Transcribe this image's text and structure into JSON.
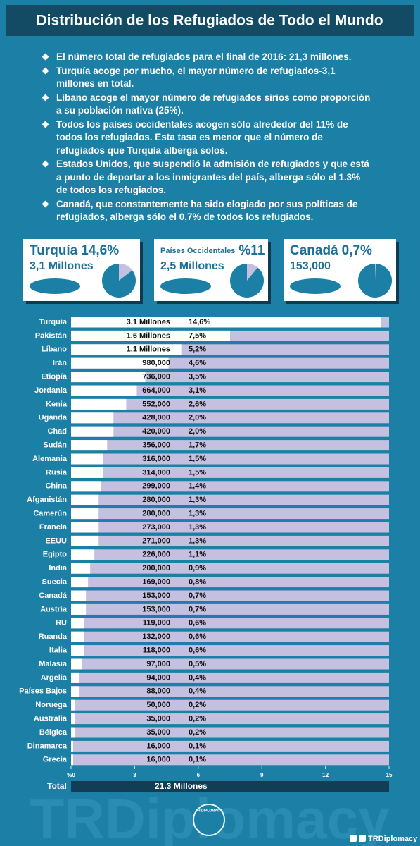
{
  "header": {
    "title": "Distribución de los Refugiados de Todo el Mundo"
  },
  "bullets": [
    "El número total de refugiados para el final de 2016: 21,3 millones.",
    "Turquía acoge por mucho, el mayor número de refugiados-3,1 millones en total.",
    "Líbano acoge el mayor número de refugiados sirios como proporción a su población nativa (25%).",
    "Todos los países occidentales acogen sólo alrededor del 11% de todos los refugiados. Esta tasa es menor que el número de refugiados que Turquía alberga solos.",
    "Estados Unidos, que suspendió la admisión de refugiados y que está a punto de deportar a los inmigrantes del país, alberga sólo el 1.3% de todos los refugiados.",
    "Canadá, que constantemente ha sido elogiado por sus políticas de refugiados, alberga sólo el 0,7% de todos los refugiados."
  ],
  "cards": [
    {
      "name": "Turquía",
      "stat": "14,6%",
      "sub": "3,1 Millones",
      "pie_value": 14.6
    },
    {
      "name": "Países Occidentales",
      "stat": "%11",
      "sub": "2,5 Millones",
      "pie_value": 11
    },
    {
      "name": "Canadá",
      "stat": "0,7%",
      "sub": "153,000",
      "pie_value": 0.7
    }
  ],
  "chart_data": {
    "type": "bar",
    "orientation": "horizontal",
    "categories": [
      "Turquía",
      "Pakistán",
      "Líbano",
      "Irán",
      "Etiopía",
      "Jordania",
      "Kenia",
      "Uganda",
      "Chad",
      "Sudán",
      "Alemania",
      "Rusia",
      "China",
      "Afganistán",
      "Camerún",
      "Francia",
      "EEUU",
      "Egipto",
      "India",
      "Suecia",
      "Canadá",
      "Austria",
      "RU",
      "Ruanda",
      "Italia",
      "Malasia",
      "Argelia",
      "Países Bajos",
      "Noruega",
      "Australia",
      "Bélgica",
      "Dinamarca",
      "Grecia"
    ],
    "counts": [
      "3.1 Millones",
      "1.6 Millones",
      "1.1 Millones",
      "980,000",
      "736,000",
      "664,000",
      "552,000",
      "428,000",
      "420,000",
      "356,000",
      "316,000",
      "314,000",
      "299,000",
      "280,000",
      "280,000",
      "273,000",
      "271,000",
      "226,000",
      "200,000",
      "169,000",
      "153,000",
      "153,000",
      "119,000",
      "132,000",
      "118,000",
      "97,000",
      "94,000",
      "88,000",
      "50,000",
      "35,000",
      "35,000",
      "16,000",
      "16,000"
    ],
    "values": [
      14.6,
      7.5,
      5.2,
      4.6,
      3.5,
      3.1,
      2.6,
      2.0,
      2.0,
      1.7,
      1.5,
      1.5,
      1.4,
      1.3,
      1.3,
      1.3,
      1.3,
      1.1,
      0.9,
      0.8,
      0.7,
      0.7,
      0.6,
      0.6,
      0.6,
      0.5,
      0.4,
      0.4,
      0.2,
      0.2,
      0.2,
      0.1,
      0.1
    ],
    "value_labels": [
      "14,6%",
      "7,5%",
      "5,2%",
      "4,6%",
      "3,5%",
      "3,1%",
      "2,6%",
      "2,0%",
      "2,0%",
      "1,7%",
      "1,5%",
      "1,5%",
      "1,4%",
      "1,3%",
      "1,3%",
      "1,3%",
      "1,3%",
      "1,1%",
      "0,9%",
      "0,8%",
      "0,7%",
      "0,7%",
      "0,6%",
      "0,6%",
      "0,6%",
      "0,5%",
      "0,4%",
      "0,4%",
      "0,2%",
      "0,2%",
      "0,2%",
      "0,1%",
      "0,1%"
    ],
    "color": "#ffffff",
    "track_color": "#c6c0e0",
    "xlim": [
      0,
      15
    ],
    "xticks": [
      {
        "value": 0,
        "label": "%0"
      },
      3,
      6,
      9,
      12,
      15
    ],
    "total_label": "Total",
    "total_value": "21.3 Millones"
  },
  "footer": {
    "watermark": "TRDiplomacy",
    "handle": "TRDiplomacy",
    "logo": "TR DIPLOMACY"
  }
}
